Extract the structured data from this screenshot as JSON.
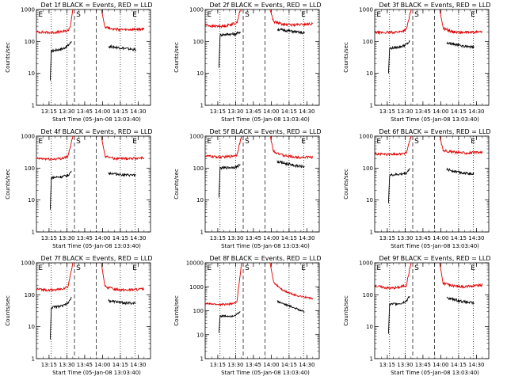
{
  "colors": {
    "events": "#000000",
    "lld": "#e00000",
    "background": "#ffffff"
  },
  "chart_data": [
    {
      "type": "line",
      "title": "Det 1f BLACK = Events, RED = LLD",
      "xlabel": "Start Time (05-Jan-08 13:03:40)",
      "ylabel": "Counts/sec",
      "xticks": [
        "13:15",
        "13:30",
        "13:45",
        "14:00",
        "14:15",
        "14:30"
      ],
      "yscale": "log",
      "ylim": [
        1,
        1000
      ],
      "yticks": [
        "1",
        "10",
        "100",
        "1000"
      ],
      "markers": [
        "E",
        "S",
        "E"
      ],
      "series": [
        {
          "name": "Events",
          "color": "#000000",
          "points": [
            [
              13.2667,
              6
            ],
            [
              13.2817,
              50
            ],
            [
              13.45,
              60
            ],
            [
              13.5167,
              75
            ],
            [
              13.55,
              90
            ],
            [
              13.5667,
              100
            ]
          ],
          "points2": [
            [
              14.0833,
              70
            ],
            [
              14.4667,
              55
            ]
          ]
        },
        {
          "name": "LLD",
          "color": "#e00000",
          "points": [
            [
              13.0733,
              200
            ],
            [
              13.2833,
              190
            ],
            [
              13.4167,
              200
            ],
            [
              13.5167,
              220
            ],
            [
              13.55,
              300
            ],
            [
              13.5833,
              1000
            ]
          ],
          "points2": [
            [
              13.9833,
              1000
            ],
            [
              14.0333,
              290
            ],
            [
              14.1667,
              240
            ],
            [
              14.3333,
              230
            ],
            [
              14.5833,
              240
            ]
          ]
        }
      ]
    },
    {
      "type": "line",
      "title": "Det 2f BLACK = Events, RED = LLD",
      "xlabel": "Start Time (05-Jan-08 13:03:40)",
      "ylabel": "Counts/sec",
      "xticks": [
        "13:15",
        "13:30",
        "13:45",
        "14:00",
        "14:15",
        "14:30"
      ],
      "yscale": "log",
      "ylim": [
        1,
        1000
      ],
      "yticks": [
        "1",
        "10",
        "100",
        "1000"
      ],
      "markers": [
        "E",
        "S",
        "E"
      ],
      "series": [
        {
          "name": "Events",
          "color": "#000000",
          "points": [
            [
              13.2667,
              15
            ],
            [
              13.2817,
              160
            ],
            [
              13.4,
              170
            ],
            [
              13.5,
              170
            ],
            [
              13.5667,
              200
            ]
          ],
          "points2": [
            [
              14.0833,
              240
            ],
            [
              14.3333,
              200
            ],
            [
              14.4667,
              180
            ]
          ]
        },
        {
          "name": "LLD",
          "color": "#e00000",
          "points": [
            [
              13.0733,
              340
            ],
            [
              13.1667,
              300
            ],
            [
              13.3333,
              300
            ],
            [
              13.45,
              350
            ],
            [
              13.5167,
              380
            ],
            [
              13.5667,
              1000
            ]
          ],
          "points2": [
            [
              13.9833,
              1000
            ],
            [
              14.0333,
              420
            ],
            [
              14.1667,
              340
            ],
            [
              14.3333,
              330
            ],
            [
              14.5833,
              360
            ]
          ]
        }
      ]
    },
    {
      "type": "line",
      "title": "Det 3f BLACK = Events, RED = LLD",
      "xlabel": "Start Time (05-Jan-08 13:03:40)",
      "ylabel": "Counts/sec",
      "xticks": [
        "13:15",
        "13:30",
        "13:45",
        "14:00",
        "14:15",
        "14:30"
      ],
      "yscale": "log",
      "ylim": [
        1,
        1000
      ],
      "yticks": [
        "1",
        "10",
        "100",
        "1000"
      ],
      "markers": [
        "E",
        "S",
        "E"
      ],
      "series": [
        {
          "name": "Events",
          "color": "#000000",
          "points": [
            [
              13.2667,
              10
            ],
            [
              13.2817,
              60
            ],
            [
              13.45,
              70
            ],
            [
              13.5167,
              80
            ],
            [
              13.5667,
              100
            ]
          ],
          "points2": [
            [
              14.0833,
              90
            ],
            [
              14.3333,
              70
            ],
            [
              14.4667,
              65
            ]
          ]
        },
        {
          "name": "LLD",
          "color": "#e00000",
          "points": [
            [
              13.0733,
              190
            ],
            [
              13.2833,
              190
            ],
            [
              13.4167,
              200
            ],
            [
              13.5167,
              230
            ],
            [
              13.5833,
              1000
            ]
          ],
          "points2": [
            [
              13.9833,
              1000
            ],
            [
              14.0333,
              260
            ],
            [
              14.1667,
              200
            ],
            [
              14.3333,
              190
            ],
            [
              14.5833,
              200
            ]
          ]
        }
      ]
    },
    {
      "type": "line",
      "title": "Det 4f BLACK = Events, RED = LLD",
      "xlabel": "Start Time (05-Jan-08 13:03:40)",
      "ylabel": "Counts/sec",
      "xticks": [
        "13:15",
        "13:30",
        "13:45",
        "14:00",
        "14:15",
        "14:30"
      ],
      "yscale": "log",
      "ylim": [
        1,
        1000
      ],
      "yticks": [
        "1",
        "10",
        "100",
        "1000"
      ],
      "markers": [
        "E",
        "S",
        "E"
      ],
      "series": [
        {
          "name": "Events",
          "color": "#000000",
          "points": [
            [
              13.2667,
              5
            ],
            [
              13.2817,
              50
            ],
            [
              13.45,
              55
            ],
            [
              13.5167,
              60
            ],
            [
              13.5667,
              80
            ]
          ],
          "points2": [
            [
              14.0833,
              70
            ],
            [
              14.3333,
              60
            ],
            [
              14.4667,
              60
            ]
          ]
        },
        {
          "name": "LLD",
          "color": "#e00000",
          "points": [
            [
              13.0733,
              200
            ],
            [
              13.2833,
              190
            ],
            [
              13.4167,
              200
            ],
            [
              13.5167,
              230
            ],
            [
              13.5833,
              1000
            ]
          ],
          "points2": [
            [
              13.9833,
              1000
            ],
            [
              14.0333,
              240
            ],
            [
              14.1667,
              200
            ],
            [
              14.3333,
              200
            ],
            [
              14.5833,
              210
            ]
          ]
        }
      ]
    },
    {
      "type": "line",
      "title": "Det 5f BLACK = Events, RED = LLD",
      "xlabel": "Start Time (05-Jan-08 13:03:40)",
      "ylabel": "Counts/sec",
      "xticks": [
        "13:15",
        "13:30",
        "13:45",
        "14:00",
        "14:15",
        "14:30"
      ],
      "yscale": "log",
      "ylim": [
        1,
        1000
      ],
      "yticks": [
        "1",
        "10",
        "100",
        "1000"
      ],
      "markers": [
        "E",
        "S",
        "E"
      ],
      "series": [
        {
          "name": "Events",
          "color": "#000000",
          "points": [
            [
              13.2667,
              12
            ],
            [
              13.2817,
              100
            ],
            [
              13.45,
              105
            ],
            [
              13.5167,
              110
            ],
            [
              13.5667,
              130
            ]
          ],
          "points2": [
            [
              14.0833,
              160
            ],
            [
              14.3333,
              120
            ],
            [
              14.4667,
              110
            ]
          ]
        },
        {
          "name": "LLD",
          "color": "#e00000",
          "points": [
            [
              13.0733,
              240
            ],
            [
              13.2833,
              220
            ],
            [
              13.4167,
              230
            ],
            [
              13.5167,
              260
            ],
            [
              13.5833,
              1000
            ]
          ],
          "points2": [
            [
              13.9833,
              1000
            ],
            [
              14.0333,
              340
            ],
            [
              14.1667,
              250
            ],
            [
              14.3333,
              220
            ],
            [
              14.5833,
              220
            ]
          ]
        }
      ]
    },
    {
      "type": "line",
      "title": "Det 6f BLACK = Events, RED = LLD",
      "xlabel": "Start Time (05-Jan-08 13:03:40)",
      "ylabel": "Counts/sec",
      "xticks": [
        "13:15",
        "13:30",
        "13:45",
        "14:00",
        "14:15",
        "14:30"
      ],
      "yscale": "log",
      "ylim": [
        1,
        1000
      ],
      "yticks": [
        "1",
        "10",
        "100",
        "1000"
      ],
      "markers": [
        "E",
        "S",
        "E"
      ],
      "series": [
        {
          "name": "Events",
          "color": "#000000",
          "points": [
            [
              13.2667,
              8
            ],
            [
              13.2817,
              60
            ],
            [
              13.45,
              65
            ],
            [
              13.5167,
              70
            ],
            [
              13.5667,
              100
            ]
          ],
          "points2": [
            [
              14.0833,
              90
            ],
            [
              14.3333,
              70
            ],
            [
              14.4667,
              65
            ]
          ]
        },
        {
          "name": "LLD",
          "color": "#e00000",
          "points": [
            [
              13.0733,
              280
            ],
            [
              13.2833,
              270
            ],
            [
              13.4167,
              280
            ],
            [
              13.5167,
              300
            ],
            [
              13.5833,
              1000
            ]
          ],
          "points2": [
            [
              13.9833,
              1000
            ],
            [
              14.0333,
              360
            ],
            [
              14.1667,
              320
            ],
            [
              14.3333,
              300
            ],
            [
              14.5833,
              310
            ]
          ]
        }
      ]
    },
    {
      "type": "line",
      "title": "Det 7f BLACK = Events, RED = LLD",
      "xlabel": "Start Time (05-Jan-08 13:03:40)",
      "ylabel": "Counts/sec",
      "xticks": [
        "13:15",
        "13:30",
        "13:45",
        "14:00",
        "14:15",
        "14:30"
      ],
      "yscale": "log",
      "ylim": [
        1,
        1000
      ],
      "yticks": [
        "1",
        "10",
        "100",
        "1000"
      ],
      "markers": [
        "E",
        "S",
        "E"
      ],
      "series": [
        {
          "name": "Events",
          "color": "#000000",
          "points": [
            [
              13.2667,
              4
            ],
            [
              13.2817,
              40
            ],
            [
              13.45,
              45
            ],
            [
              13.5167,
              55
            ],
            [
              13.5667,
              80
            ]
          ],
          "points2": [
            [
              14.0833,
              65
            ],
            [
              14.3333,
              55
            ],
            [
              14.4667,
              55
            ]
          ]
        },
        {
          "name": "LLD",
          "color": "#e00000",
          "points": [
            [
              13.0733,
              150
            ],
            [
              13.2833,
              140
            ],
            [
              13.4167,
              150
            ],
            [
              13.5167,
              180
            ],
            [
              13.5833,
              1000
            ]
          ],
          "points2": [
            [
              13.9833,
              1000
            ],
            [
              14.0333,
              180
            ],
            [
              14.1667,
              150
            ],
            [
              14.3333,
              140
            ],
            [
              14.5833,
              150
            ]
          ]
        }
      ]
    },
    {
      "type": "line",
      "title": "Det 8f BLACK = Events, RED = LLD",
      "xlabel": "Start Time (05-Jan-08 13:03:40)",
      "ylabel": "Counts/sec",
      "xticks": [
        "13:15",
        "13:30",
        "13:45",
        "14:00",
        "14:15",
        "14:30"
      ],
      "yscale": "log",
      "ylim": [
        1,
        10000
      ],
      "yticks": [
        "1",
        "10",
        "100",
        "1000",
        "10000"
      ],
      "markers": [
        "E",
        "S",
        "E"
      ],
      "series": [
        {
          "name": "Events",
          "color": "#000000",
          "points": [
            [
              13.2667,
              12
            ],
            [
              13.2817,
              60
            ],
            [
              13.45,
              60
            ],
            [
              13.5167,
              70
            ],
            [
              13.5667,
              90
            ]
          ],
          "points2": [
            [
              14.0833,
              250
            ],
            [
              14.3333,
              130
            ],
            [
              14.4667,
              90
            ]
          ]
        },
        {
          "name": "LLD",
          "color": "#e00000",
          "points": [
            [
              13.0733,
              200
            ],
            [
              13.2833,
              180
            ],
            [
              13.4167,
              190
            ],
            [
              13.5167,
              220
            ],
            [
              13.5833,
              10000
            ]
          ],
          "points2": [
            [
              13.9833,
              10000
            ],
            [
              14.0333,
              1500
            ],
            [
              14.1667,
              700
            ],
            [
              14.3333,
              450
            ],
            [
              14.5833,
              320
            ]
          ]
        }
      ]
    },
    {
      "type": "line",
      "title": "Det 9f BLACK = Events, RED = LLD",
      "xlabel": "Start Time (05-Jan-08 13:03:40)",
      "ylabel": "Counts/sec",
      "xticks": [
        "13:15",
        "13:30",
        "13:45",
        "14:00",
        "14:15",
        "14:30"
      ],
      "yscale": "log",
      "ylim": [
        1,
        1000
      ],
      "yticks": [
        "1",
        "10",
        "100",
        "1000"
      ],
      "markers": [
        "E",
        "S",
        "E"
      ],
      "series": [
        {
          "name": "Events",
          "color": "#000000",
          "points": [
            [
              13.2667,
              6
            ],
            [
              13.2817,
              50
            ],
            [
              13.45,
              55
            ],
            [
              13.5167,
              65
            ],
            [
              13.5667,
              90
            ]
          ],
          "points2": [
            [
              14.0833,
              80
            ],
            [
              14.3333,
              60
            ],
            [
              14.4667,
              55
            ]
          ]
        },
        {
          "name": "LLD",
          "color": "#e00000",
          "points": [
            [
              13.0733,
              190
            ],
            [
              13.2833,
              160
            ],
            [
              13.4167,
              170
            ],
            [
              13.5167,
              200
            ],
            [
              13.5833,
              1000
            ]
          ],
          "points2": [
            [
              13.9833,
              1000
            ],
            [
              14.0333,
              230
            ],
            [
              14.1667,
              190
            ],
            [
              14.3333,
              180
            ],
            [
              14.5833,
              200
            ]
          ]
        }
      ]
    }
  ]
}
